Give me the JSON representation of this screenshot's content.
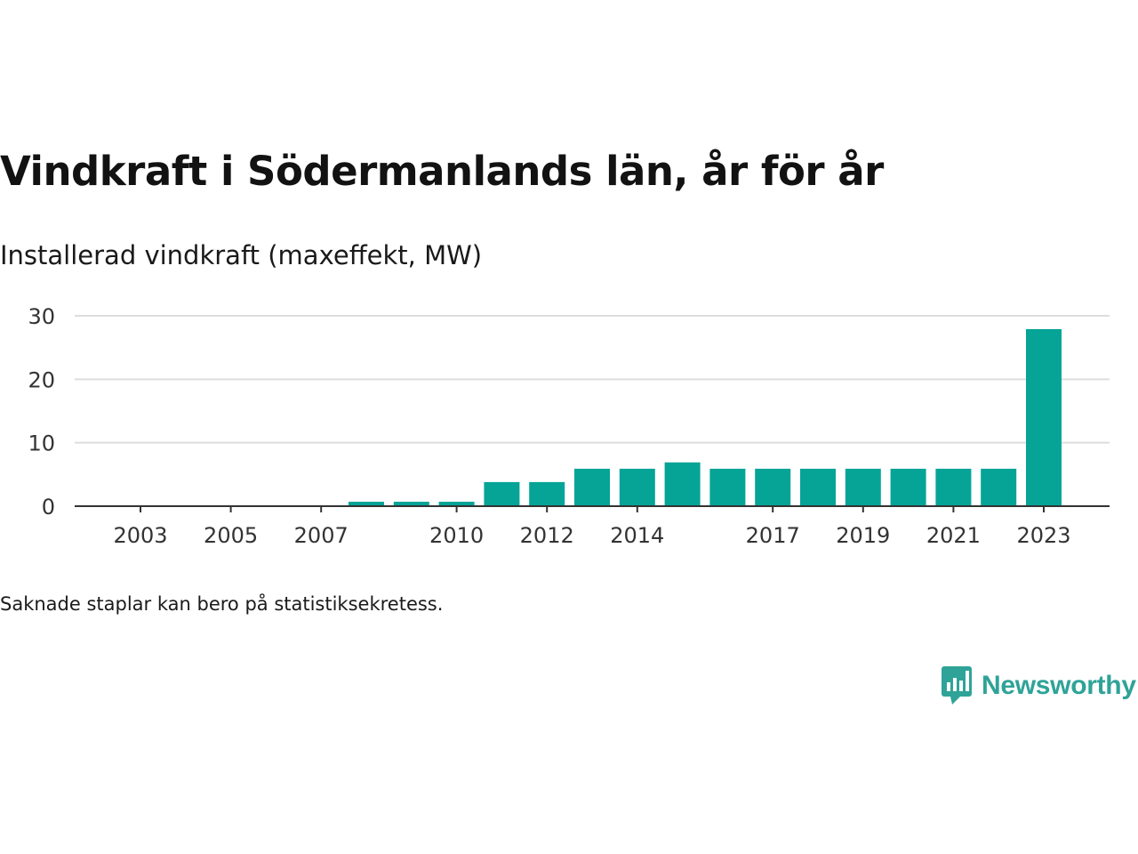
{
  "title": "Vindkraft i Södermanlands län, år för år",
  "subtitle": "Installerad vindkraft (maxeffekt, MW)",
  "note": "Saknade staplar kan bero på statistiksekretess.",
  "brand": {
    "name": "Newsworthy",
    "logo_icon": "bar-chart-speech-bubble-icon"
  },
  "colors": {
    "bar": "#05a497",
    "grid": "#dddddd",
    "axis": "#333333",
    "brand": "#2fa398"
  },
  "chart_data": {
    "type": "bar",
    "title": "Vindkraft i Södermanlands län, år för år",
    "subtitle": "Installerad vindkraft (maxeffekt, MW)",
    "xlabel": "",
    "ylabel": "",
    "categories": [
      "2003",
      "2004",
      "2005",
      "2006",
      "2007",
      "2008",
      "2009",
      "2010",
      "2011",
      "2012",
      "2013",
      "2014",
      "2015",
      "2016",
      "2017",
      "2018",
      "2019",
      "2020",
      "2021",
      "2022",
      "2023"
    ],
    "values": [
      0,
      0,
      0,
      0,
      0,
      0.7,
      0.7,
      0.7,
      3.8,
      3.8,
      5.9,
      5.9,
      6.9,
      5.9,
      5.9,
      5.9,
      5.9,
      5.9,
      5.9,
      5.9,
      27.9
    ],
    "x_tick_labels": [
      "2003",
      "2005",
      "2007",
      "2010",
      "2012",
      "2014",
      "2017",
      "2019",
      "2021",
      "2023"
    ],
    "y_ticks": [
      0,
      10,
      20,
      30
    ],
    "ylim": [
      0,
      30
    ],
    "grid": true,
    "legend": "none"
  }
}
